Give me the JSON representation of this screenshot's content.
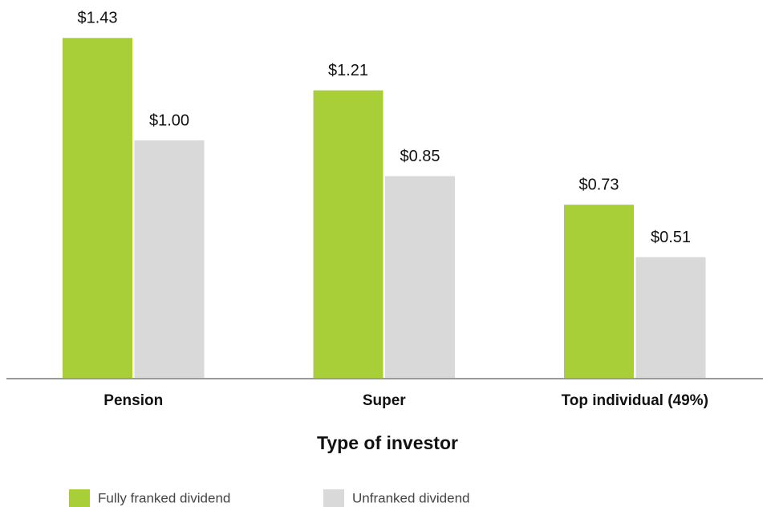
{
  "chart_data": {
    "type": "bar",
    "x_label": "Type of investor",
    "categories": [
      "Pension",
      "Super",
      "Top individual (49%)"
    ],
    "series": [
      {
        "name": "Fully franked dividend",
        "color": "#a8cf38",
        "values": [
          1.43,
          1.21,
          0.73
        ],
        "value_labels": [
          "$1.43",
          "$1.21",
          "$0.73"
        ]
      },
      {
        "name": "Unfranked dividend",
        "color": "#d9d9d9",
        "values": [
          1.0,
          0.85,
          0.51
        ],
        "value_labels": [
          "$1.00",
          "$0.85",
          "$0.51"
        ]
      }
    ]
  }
}
